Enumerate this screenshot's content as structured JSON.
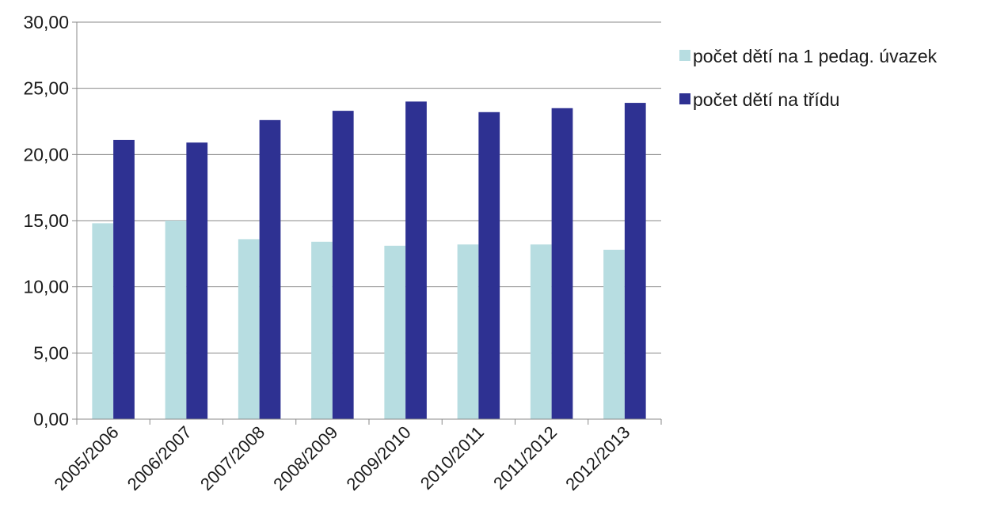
{
  "chart_data": {
    "type": "bar",
    "title": "",
    "xlabel": "",
    "ylabel": "",
    "categories": [
      "2005/2006",
      "2006/2007",
      "2007/2008",
      "2008/2009",
      "2009/2010",
      "2010/2011",
      "2011/2012",
      "2012/2013"
    ],
    "series": [
      {
        "name": "počet dětí na 1 pedag. úvazek",
        "color": "#b7dde1",
        "values": [
          14.8,
          15.0,
          13.6,
          13.4,
          13.1,
          13.2,
          13.2,
          12.8
        ]
      },
      {
        "name": "počet dětí na třídu",
        "color": "#2e3192",
        "values": [
          21.1,
          20.9,
          22.6,
          23.3,
          24.0,
          23.2,
          23.5,
          23.9
        ]
      }
    ],
    "ylim": [
      0,
      30
    ],
    "yticks": [
      "0,00",
      "5,00",
      "10,00",
      "15,00",
      "20,00",
      "25,00",
      "30,00"
    ],
    "grid": true,
    "legend_position": "right"
  }
}
